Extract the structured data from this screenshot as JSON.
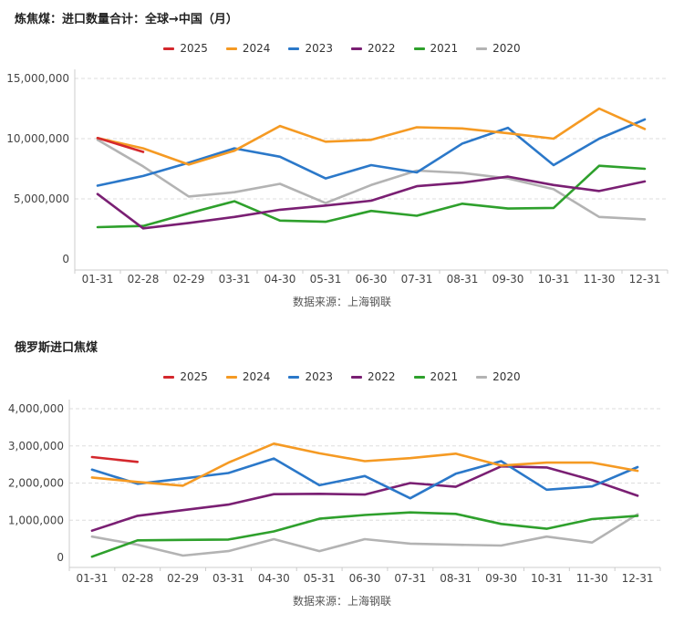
{
  "chart_data": [
    {
      "type": "line",
      "title": "炼焦煤：进口数量合计：全球→中国（月）",
      "xlabel": "",
      "ylabel": "",
      "source": "数据来源：上海钢联",
      "categories": [
        "01-31",
        "02-28",
        "02-29",
        "03-31",
        "04-30",
        "05-31",
        "06-30",
        "07-31",
        "08-31",
        "09-30",
        "10-31",
        "11-30",
        "12-31"
      ],
      "yticks": [
        "0",
        "5,000,000",
        "10,000,000",
        "15,000,000"
      ],
      "ylim": [
        0,
        15000000
      ],
      "grid": true,
      "legend_position": "top-center",
      "series": [
        {
          "name": "2025",
          "color": "#d4282d",
          "values": [
            10050000,
            8900000,
            null,
            null,
            null,
            null,
            null,
            null,
            null,
            null,
            null,
            null,
            null
          ]
        },
        {
          "name": "2024",
          "color": "#f59a23",
          "values": [
            10050000,
            9200000,
            7850000,
            9000000,
            11050000,
            9750000,
            9900000,
            10950000,
            10850000,
            10450000,
            10000000,
            12500000,
            10800000
          ]
        },
        {
          "name": "2023",
          "color": "#2b78c9",
          "values": [
            6100000,
            6900000,
            8000000,
            9200000,
            8500000,
            6700000,
            7800000,
            7200000,
            9600000,
            10900000,
            7800000,
            10000000,
            11600000
          ]
        },
        {
          "name": "2022",
          "color": "#7a1f73",
          "values": [
            5400000,
            2550000,
            3000000,
            3500000,
            4100000,
            4450000,
            4850000,
            6050000,
            6350000,
            6850000,
            6150000,
            5650000,
            6450000
          ]
        },
        {
          "name": "2021",
          "color": "#2ea02c",
          "values": [
            2650000,
            2750000,
            3800000,
            4800000,
            3200000,
            3100000,
            4000000,
            3600000,
            4600000,
            4200000,
            4250000,
            7750000,
            7500000
          ]
        },
        {
          "name": "2020",
          "color": "#b3b3b3",
          "values": [
            9900000,
            7700000,
            5200000,
            5550000,
            6250000,
            4650000,
            6150000,
            7350000,
            7150000,
            6700000,
            5800000,
            3500000,
            3300000
          ]
        }
      ]
    },
    {
      "type": "line",
      "title": "俄罗斯进口焦煤",
      "xlabel": "",
      "ylabel": "",
      "source": "数据来源：上海钢联",
      "categories": [
        "01-31",
        "02-28",
        "02-29",
        "03-31",
        "04-30",
        "05-31",
        "06-30",
        "07-31",
        "08-31",
        "09-30",
        "10-31",
        "11-30",
        "12-31"
      ],
      "yticks": [
        "0",
        "1,000,000",
        "2,000,000",
        "3,000,000",
        "4,000,000"
      ],
      "ylim": [
        0,
        4000000
      ],
      "grid": true,
      "legend_position": "top-center",
      "series": [
        {
          "name": "2025",
          "color": "#d4282d",
          "values": [
            2700000,
            2570000,
            null,
            null,
            null,
            null,
            null,
            null,
            null,
            null,
            null,
            null,
            null
          ]
        },
        {
          "name": "2024",
          "color": "#f59a23",
          "values": [
            2150000,
            2030000,
            1930000,
            2550000,
            3060000,
            2800000,
            2590000,
            2670000,
            2790000,
            2470000,
            2550000,
            2550000,
            2330000
          ]
        },
        {
          "name": "2023",
          "color": "#2b78c9",
          "values": [
            2360000,
            1980000,
            2120000,
            2270000,
            2660000,
            1940000,
            2190000,
            1590000,
            2250000,
            2590000,
            1820000,
            1910000,
            2430000
          ]
        },
        {
          "name": "2022",
          "color": "#7a1f73",
          "values": [
            720000,
            1120000,
            1270000,
            1420000,
            1700000,
            1710000,
            1690000,
            2000000,
            1900000,
            2450000,
            2420000,
            2080000,
            1660000
          ]
        },
        {
          "name": "2021",
          "color": "#2ea02c",
          "values": [
            20000,
            460000,
            470000,
            480000,
            700000,
            1040000,
            1140000,
            1210000,
            1170000,
            900000,
            770000,
            1030000,
            1120000
          ]
        },
        {
          "name": "2020",
          "color": "#b3b3b3",
          "values": [
            560000,
            340000,
            50000,
            170000,
            490000,
            170000,
            490000,
            370000,
            340000,
            320000,
            560000,
            400000,
            1160000
          ]
        }
      ]
    }
  ]
}
